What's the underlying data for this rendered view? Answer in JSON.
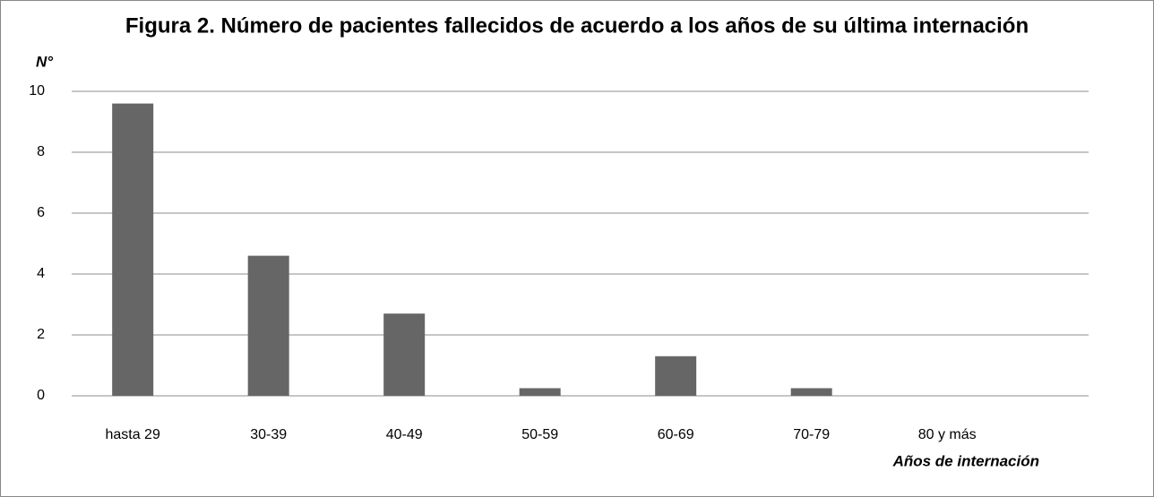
{
  "chart_data": {
    "type": "bar",
    "title": "Figura 2. Número de pacientes fallecidos de acuerdo a los años de su última internación",
    "y_axis_label": "N°",
    "x_axis_label": "Años de internación",
    "categories": [
      "hasta 29",
      "30-39",
      "40-49",
      "50-59",
      "60-69",
      "70-79",
      "80 y más"
    ],
    "values": [
      9.6,
      4.6,
      2.7,
      0.25,
      1.3,
      0.25,
      0
    ],
    "color": "#666666",
    "ylim": [
      0,
      10
    ],
    "yticks": [
      0,
      2,
      4,
      6,
      8,
      10
    ],
    "grid": true
  }
}
